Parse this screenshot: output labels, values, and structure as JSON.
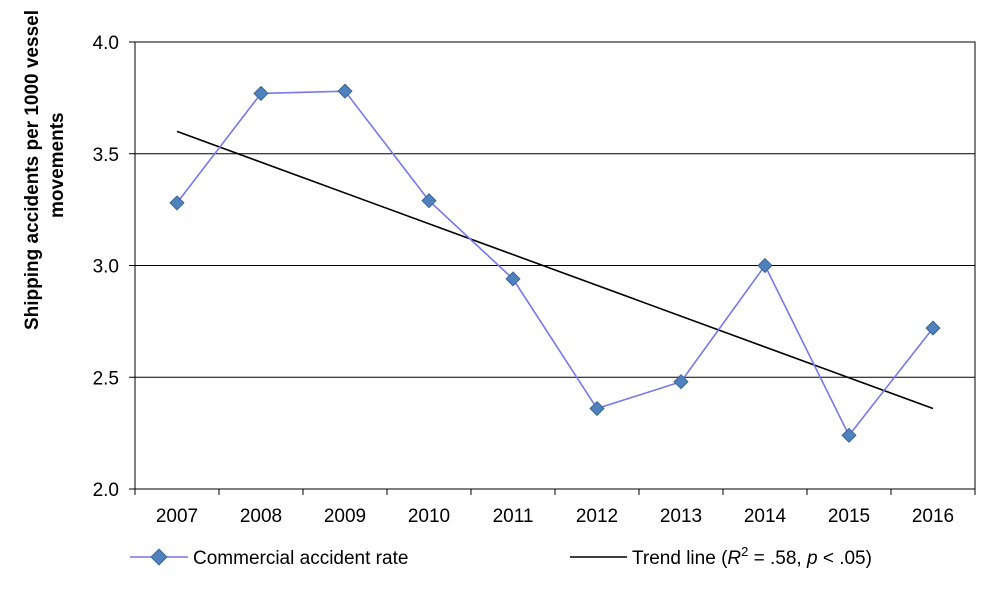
{
  "chart_data": {
    "type": "line",
    "title": "",
    "xlabel": "",
    "ylabel_lines": [
      "Shipping accidents per 1000 vessel",
      "movements"
    ],
    "categories": [
      "2007",
      "2008",
      "2009",
      "2010",
      "2011",
      "2012",
      "2013",
      "2014",
      "2015",
      "2016"
    ],
    "ylim": [
      2.0,
      4.0
    ],
    "yticks": [
      "2.0",
      "2.5",
      "3.0",
      "3.5",
      "4.0"
    ],
    "grid": "horizontal",
    "series": [
      {
        "name": "Commercial accident rate",
        "color": "#7777ee",
        "marker_color": "#4f81bd",
        "marker": "diamond",
        "values": [
          3.28,
          3.77,
          3.78,
          3.29,
          2.94,
          2.36,
          2.48,
          3.0,
          2.24,
          2.72
        ]
      }
    ],
    "trend": {
      "name_prefix": "Trend line (",
      "r_symbol": "R",
      "r_sup": "2",
      "stat_mid": " = .58, ",
      "p_symbol": "p",
      "stat_end": " < .05)",
      "color": "#000000",
      "start": 3.6,
      "end": 2.36
    },
    "legend_position": "bottom"
  }
}
